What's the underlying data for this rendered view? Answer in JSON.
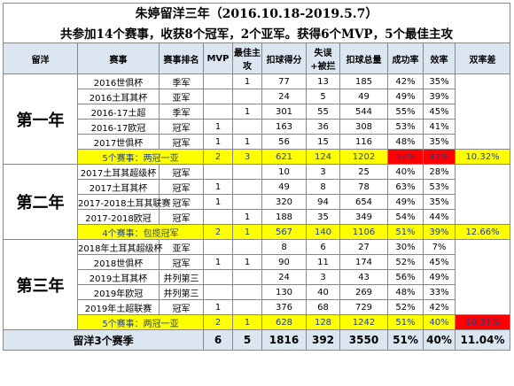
{
  "header": {
    "title": "朱婷留洋三年（2016.10.18-2019.5.7）",
    "subtitle": "共参加14个赛事，收获8个冠军，2个亚军。获得6个MVP，5个最佳主攻"
  },
  "columns": [
    "留洋",
    "赛事",
    "赛事排名",
    "MVP",
    "最佳主攻",
    "扣球得分",
    "失误+被拦",
    "扣球总量",
    "成功率",
    "效率",
    "双率差"
  ],
  "years": [
    {
      "label": "第一年",
      "rows": [
        [
          "2016世俱杯",
          "季军",
          null,
          1,
          77,
          13,
          185,
          "42%",
          "35%"
        ],
        [
          "2016土耳其杯",
          "亚军",
          null,
          null,
          24,
          5,
          49,
          "49%",
          "39%"
        ],
        [
          "2016-17土超",
          "季军",
          null,
          1,
          301,
          55,
          544,
          "55%",
          "45%"
        ],
        [
          "2016-17欧冠",
          "冠军",
          1,
          null,
          163,
          36,
          308,
          "53%",
          "41%"
        ],
        [
          "2017世俱杯",
          "冠军",
          1,
          1,
          56,
          15,
          116,
          "48%",
          "35%"
        ]
      ],
      "summary": [
        "5个赛事：两冠一亚",
        2,
        3,
        621,
        124,
        1202,
        "52%",
        "41%",
        "10.32%"
      ]
    },
    {
      "label": "第二年",
      "rows": [
        [
          "2017土耳其超级杯",
          "冠军",
          null,
          null,
          10,
          3,
          25,
          "40%",
          "28%"
        ],
        [
          "2017土耳其杯",
          "冠军",
          1,
          null,
          49,
          8,
          78,
          "63%",
          "53%"
        ],
        [
          "2017-2018土耳其联赛",
          "冠军",
          1,
          null,
          320,
          94,
          654,
          "49%",
          "35%"
        ],
        [
          "2017-2018欧冠",
          "冠军",
          null,
          1,
          188,
          35,
          349,
          "54%",
          "44%"
        ]
      ],
      "summary": [
        "4个赛事：包揽冠军",
        2,
        1,
        567,
        140,
        1106,
        "51%",
        "39%",
        "12.66%"
      ]
    },
    {
      "label": "第三年",
      "rows": [
        [
          "2018年土耳其超级杯",
          "亚军",
          null,
          null,
          8,
          6,
          27,
          "30%",
          "7%"
        ],
        [
          "2018世俱杯",
          "冠军",
          1,
          1,
          90,
          11,
          174,
          "52%",
          "45%"
        ],
        [
          "2019土耳其杯",
          "并列第三",
          null,
          null,
          24,
          3,
          43,
          "56%",
          "49%"
        ],
        [
          "2019年欧冠",
          "并列第三",
          null,
          null,
          130,
          40,
          269,
          "48%",
          "33%"
        ],
        [
          "2019年土超联赛",
          "冠军",
          1,
          null,
          376,
          68,
          729,
          "52%",
          "42%"
        ]
      ],
      "summary": [
        "5个赛事：两冠一亚",
        2,
        1,
        628,
        128,
        1242,
        "51%",
        "40%",
        "10.31%"
      ]
    }
  ],
  "total": [
    "留洋3个赛季",
    6,
    5,
    1816,
    392,
    3550,
    "51%",
    "40%",
    "11.04%"
  ]
}
